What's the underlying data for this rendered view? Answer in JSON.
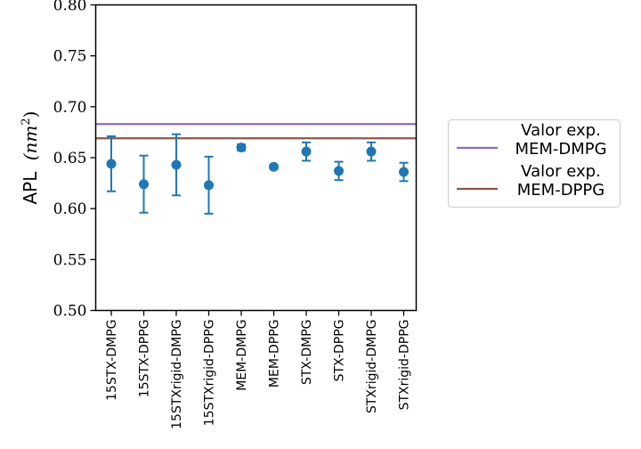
{
  "chart_data": {
    "type": "scatter",
    "ylabel_prefix": "APL",
    "ylabel_unit": "(nm",
    "ylabel_unit_exp": "2",
    "ylabel_unit_close": ")",
    "ylim": [
      0.5,
      0.8
    ],
    "yticks": [
      "0.50",
      "0.55",
      "0.60",
      "0.65",
      "0.70",
      "0.75",
      "0.80"
    ],
    "categories": [
      "15STX-DMPG",
      "15STX-DPPG",
      "15STXrigid-DMPG",
      "15STXrigid-DPPG",
      "MEM-DMPG",
      "MEM-DPPG",
      "STX-DMPG",
      "STX-DPPG",
      "STXrigid-DMPG",
      "STXrigid-DPPG"
    ],
    "values": [
      0.644,
      0.624,
      0.643,
      0.623,
      0.66,
      0.641,
      0.656,
      0.637,
      0.656,
      0.636
    ],
    "errors": [
      0.027,
      0.028,
      0.03,
      0.028,
      0.003,
      0.002,
      0.009,
      0.009,
      0.009,
      0.009
    ],
    "point_color": "#1f77b4",
    "reference_lines": [
      {
        "label_line1": "Valor exp.",
        "label_line2": "MEM-DMPG",
        "value": 0.683,
        "color": "#9467bd"
      },
      {
        "label_line1": "Valor exp.",
        "label_line2": "MEM-DPPG",
        "value": 0.669,
        "color": "#8c564b"
      }
    ],
    "legend_position": "right"
  }
}
